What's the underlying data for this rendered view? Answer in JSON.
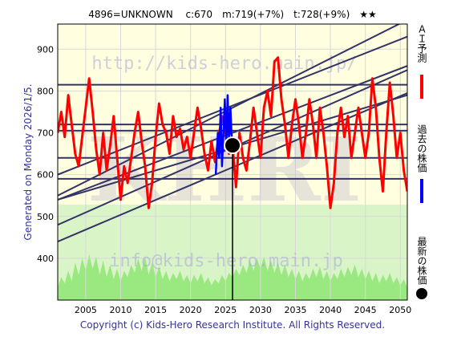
{
  "header": {
    "title": "4896=UNKNOWN　 c:670　m:719(+7%)　t:728(+9%)　★★"
  },
  "generated_label": "Generated on Monday 2026/1/5.",
  "copyright": "Copyright (c) Kids-Hero Research Institute. All Rights Reserved.",
  "watermarks": {
    "url": "http://kids-hero.main.jp/",
    "email": "info@kids-hero.main.jp",
    "logo": "KHRI"
  },
  "legend": {
    "ai": "ＡＩ予測",
    "past": "過去の株価",
    "latest": "最新の株価"
  },
  "colors": {
    "plot_upper": "#ffffe0",
    "plot_lower": "#d9f5c8",
    "volume": "#99e880",
    "ai": "#ff0000",
    "past": "#0000ff",
    "latest": "#000000",
    "trend": "#333366"
  },
  "chart_data": {
    "type": "line",
    "title": "4896=UNKNOWN　 c:670　m:719(+7%)　t:728(+9%)　★★",
    "x_range": [
      2001.0,
      2051.0
    ],
    "y_range": [
      300,
      960
    ],
    "x_ticks": [
      2005,
      2010,
      2015,
      2020,
      2025,
      2030,
      2035,
      2040,
      2045,
      2050
    ],
    "y_ticks": [
      400,
      500,
      600,
      700,
      800,
      900
    ],
    "grid": true,
    "current": {
      "x": 2026.0,
      "y": 670
    },
    "hlines": [
      640,
      705,
      720,
      815,
      590
    ],
    "trend_lines": [
      {
        "x0": 2001.0,
        "y0": 550,
        "x1": 2051.0,
        "y1": 970
      },
      {
        "x0": 2001.0,
        "y0": 600,
        "x1": 2051.0,
        "y1": 930
      },
      {
        "x0": 2001.0,
        "y0": 540,
        "x1": 2051.0,
        "y1": 860
      },
      {
        "x0": 2001.0,
        "y0": 480,
        "x1": 2051.0,
        "y1": 850
      },
      {
        "x0": 2001.0,
        "y0": 440,
        "x1": 2051.0,
        "y1": 795
      },
      {
        "x0": 2001.0,
        "y0": 540,
        "x1": 2051.0,
        "y1": 790
      }
    ],
    "series": [
      {
        "name": "ＡＩ予測",
        "points": [
          [
            2001.0,
            700
          ],
          [
            2001.5,
            750
          ],
          [
            2002.0,
            690
          ],
          [
            2002.5,
            790
          ],
          [
            2003.0,
            720
          ],
          [
            2003.5,
            650
          ],
          [
            2004.0,
            620
          ],
          [
            2004.5,
            690
          ],
          [
            2005.0,
            760
          ],
          [
            2005.5,
            830
          ],
          [
            2006.0,
            750
          ],
          [
            2006.5,
            660
          ],
          [
            2007.0,
            600
          ],
          [
            2007.5,
            700
          ],
          [
            2008.0,
            610
          ],
          [
            2008.5,
            670
          ],
          [
            2009.0,
            740
          ],
          [
            2009.5,
            640
          ],
          [
            2010.0,
            540
          ],
          [
            2010.5,
            620
          ],
          [
            2011.0,
            580
          ],
          [
            2011.5,
            640
          ],
          [
            2012.0,
            700
          ],
          [
            2012.5,
            750
          ],
          [
            2013.0,
            680
          ],
          [
            2013.5,
            620
          ],
          [
            2014.0,
            520
          ],
          [
            2014.5,
            580
          ],
          [
            2015.0,
            690
          ],
          [
            2015.5,
            770
          ],
          [
            2016.0,
            720
          ],
          [
            2016.5,
            700
          ],
          [
            2017.0,
            650
          ],
          [
            2017.5,
            740
          ],
          [
            2018.0,
            690
          ],
          [
            2018.5,
            710
          ],
          [
            2019.0,
            660
          ],
          [
            2019.5,
            690
          ],
          [
            2020.0,
            640
          ],
          [
            2020.5,
            700
          ],
          [
            2021.0,
            760
          ],
          [
            2021.5,
            710
          ],
          [
            2022.0,
            650
          ],
          [
            2022.5,
            610
          ],
          [
            2023.0,
            680
          ],
          [
            2023.5,
            630
          ],
          [
            2024.0,
            690
          ],
          [
            2024.5,
            740
          ],
          [
            2025.0,
            700
          ],
          [
            2025.5,
            650
          ],
          [
            2026.0,
            670
          ],
          [
            2026.5,
            570
          ],
          [
            2027.0,
            700
          ],
          [
            2027.5,
            640
          ],
          [
            2028.0,
            610
          ],
          [
            2028.5,
            680
          ],
          [
            2029.0,
            760
          ],
          [
            2029.5,
            700
          ],
          [
            2030.0,
            640
          ],
          [
            2030.5,
            760
          ],
          [
            2031.0,
            800
          ],
          [
            2031.5,
            740
          ],
          [
            2032.0,
            870
          ],
          [
            2032.5,
            880
          ],
          [
            2033.0,
            780
          ],
          [
            2033.5,
            720
          ],
          [
            2034.0,
            640
          ],
          [
            2034.5,
            720
          ],
          [
            2035.0,
            780
          ],
          [
            2035.5,
            720
          ],
          [
            2036.0,
            640
          ],
          [
            2036.5,
            700
          ],
          [
            2037.0,
            780
          ],
          [
            2037.5,
            720
          ],
          [
            2038.0,
            640
          ],
          [
            2038.5,
            760
          ],
          [
            2039.0,
            700
          ],
          [
            2039.5,
            620
          ],
          [
            2040.0,
            520
          ],
          [
            2040.5,
            580
          ],
          [
            2041.0,
            700
          ],
          [
            2041.5,
            760
          ],
          [
            2042.0,
            690
          ],
          [
            2042.5,
            740
          ],
          [
            2043.0,
            640
          ],
          [
            2043.5,
            700
          ],
          [
            2044.0,
            760
          ],
          [
            2044.5,
            700
          ],
          [
            2045.0,
            640
          ],
          [
            2045.5,
            700
          ],
          [
            2046.0,
            830
          ],
          [
            2046.5,
            760
          ],
          [
            2047.0,
            640
          ],
          [
            2047.5,
            560
          ],
          [
            2048.0,
            700
          ],
          [
            2048.5,
            820
          ],
          [
            2049.0,
            740
          ],
          [
            2049.5,
            640
          ],
          [
            2050.0,
            700
          ],
          [
            2050.5,
            610
          ],
          [
            2051.0,
            560
          ]
        ]
      },
      {
        "name": "過去の株価",
        "points": [
          [
            2023.6,
            600
          ],
          [
            2023.9,
            700
          ],
          [
            2024.1,
            640
          ],
          [
            2024.3,
            760
          ],
          [
            2024.5,
            620
          ],
          [
            2024.7,
            700
          ],
          [
            2024.9,
            780
          ],
          [
            2025.1,
            660
          ],
          [
            2025.3,
            790
          ],
          [
            2025.5,
            680
          ],
          [
            2025.7,
            760
          ],
          [
            2025.85,
            700
          ],
          [
            2026.0,
            670
          ]
        ]
      }
    ],
    "volume": {
      "baseline": 300,
      "points": [
        [
          2001.0,
          330
        ],
        [
          2001.5,
          355
        ],
        [
          2002.0,
          340
        ],
        [
          2002.5,
          370
        ],
        [
          2003.0,
          345
        ],
        [
          2003.5,
          390
        ],
        [
          2004.0,
          360
        ],
        [
          2004.5,
          400
        ],
        [
          2005.0,
          370
        ],
        [
          2005.5,
          410
        ],
        [
          2006.0,
          375
        ],
        [
          2006.5,
          405
        ],
        [
          2007.0,
          360
        ],
        [
          2007.5,
          395
        ],
        [
          2008.0,
          355
        ],
        [
          2008.5,
          385
        ],
        [
          2009.0,
          350
        ],
        [
          2009.5,
          375
        ],
        [
          2010.0,
          345
        ],
        [
          2010.5,
          370
        ],
        [
          2011.0,
          355
        ],
        [
          2011.5,
          385
        ],
        [
          2012.0,
          365
        ],
        [
          2012.5,
          400
        ],
        [
          2013.0,
          370
        ],
        [
          2013.5,
          405
        ],
        [
          2014.0,
          360
        ],
        [
          2014.5,
          390
        ],
        [
          2015.0,
          355
        ],
        [
          2015.5,
          380
        ],
        [
          2016.0,
          350
        ],
        [
          2016.5,
          370
        ],
        [
          2017.0,
          345
        ],
        [
          2017.5,
          365
        ],
        [
          2018.0,
          350
        ],
        [
          2018.5,
          370
        ],
        [
          2019.0,
          345
        ],
        [
          2019.5,
          360
        ],
        [
          2020.0,
          340
        ],
        [
          2020.5,
          360
        ],
        [
          2021.0,
          345
        ],
        [
          2021.5,
          365
        ],
        [
          2022.0,
          340
        ],
        [
          2022.5,
          355
        ],
        [
          2023.0,
          335
        ],
        [
          2023.5,
          350
        ],
        [
          2024.0,
          340
        ],
        [
          2024.5,
          360
        ],
        [
          2025.0,
          345
        ],
        [
          2025.5,
          365
        ],
        [
          2026.0,
          355
        ],
        [
          2026.5,
          375
        ],
        [
          2027.0,
          360
        ],
        [
          2027.5,
          385
        ],
        [
          2028.0,
          365
        ],
        [
          2028.5,
          395
        ],
        [
          2029.0,
          370
        ],
        [
          2029.5,
          400
        ],
        [
          2030.0,
          375
        ],
        [
          2030.5,
          405
        ],
        [
          2031.0,
          370
        ],
        [
          2031.5,
          395
        ],
        [
          2032.0,
          365
        ],
        [
          2032.5,
          390
        ],
        [
          2033.0,
          360
        ],
        [
          2033.5,
          385
        ],
        [
          2034.0,
          355
        ],
        [
          2034.5,
          375
        ],
        [
          2035.0,
          350
        ],
        [
          2035.5,
          370
        ],
        [
          2036.0,
          345
        ],
        [
          2036.5,
          365
        ],
        [
          2037.0,
          350
        ],
        [
          2037.5,
          375
        ],
        [
          2038.0,
          355
        ],
        [
          2038.5,
          380
        ],
        [
          2039.0,
          350
        ],
        [
          2039.5,
          370
        ],
        [
          2040.0,
          345
        ],
        [
          2040.5,
          365
        ],
        [
          2041.0,
          350
        ],
        [
          2041.5,
          375
        ],
        [
          2042.0,
          355
        ],
        [
          2042.5,
          380
        ],
        [
          2043.0,
          360
        ],
        [
          2043.5,
          385
        ],
        [
          2044.0,
          355
        ],
        [
          2044.5,
          375
        ],
        [
          2045.0,
          350
        ],
        [
          2045.5,
          370
        ],
        [
          2046.0,
          345
        ],
        [
          2046.5,
          365
        ],
        [
          2047.0,
          340
        ],
        [
          2047.5,
          360
        ],
        [
          2048.0,
          345
        ],
        [
          2048.5,
          365
        ],
        [
          2049.0,
          340
        ],
        [
          2049.5,
          355
        ],
        [
          2050.0,
          335
        ],
        [
          2050.5,
          350
        ],
        [
          2051.0,
          330
        ]
      ]
    }
  }
}
